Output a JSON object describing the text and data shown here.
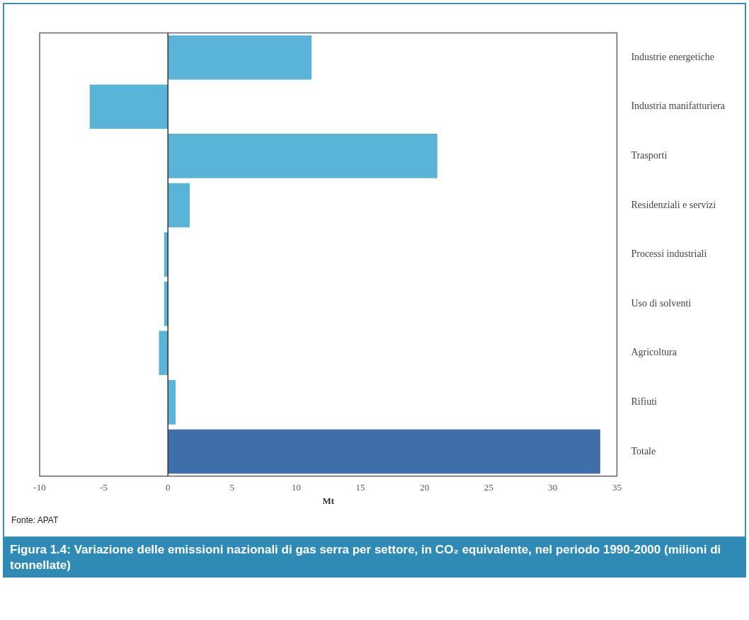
{
  "chart_data": {
    "type": "bar",
    "orientation": "horizontal",
    "title": "Figura 1.4: Variazione delle emissioni nazionali di gas serra per settore, in CO₂ equivalente, nel periodo 1990-2000 (milioni di tonnellate)",
    "xlabel": "Mt",
    "categories": [
      "Industrie energetiche",
      "Industria manifatturiera",
      "Trasporti",
      "Residenziali e servizi",
      "Processi industriali",
      "Uso di solventi",
      "Agricoltura",
      "Rifiuti",
      "Totale"
    ],
    "values": [
      11.2,
      -6.1,
      21.0,
      1.7,
      -0.3,
      -0.3,
      -0.7,
      0.6,
      33.7
    ],
    "colors": [
      "#5ab4d8",
      "#5ab4d8",
      "#5ab4d8",
      "#5ab4d8",
      "#5ab4d8",
      "#5ab4d8",
      "#5ab4d8",
      "#5ab4d8",
      "#3f6eab"
    ],
    "xlim": [
      -10,
      35
    ],
    "xticks": [
      -10,
      -5,
      0,
      5,
      10,
      15,
      20,
      25,
      30,
      35
    ],
    "annotations": [
      "Fonte: APAT"
    ]
  }
}
